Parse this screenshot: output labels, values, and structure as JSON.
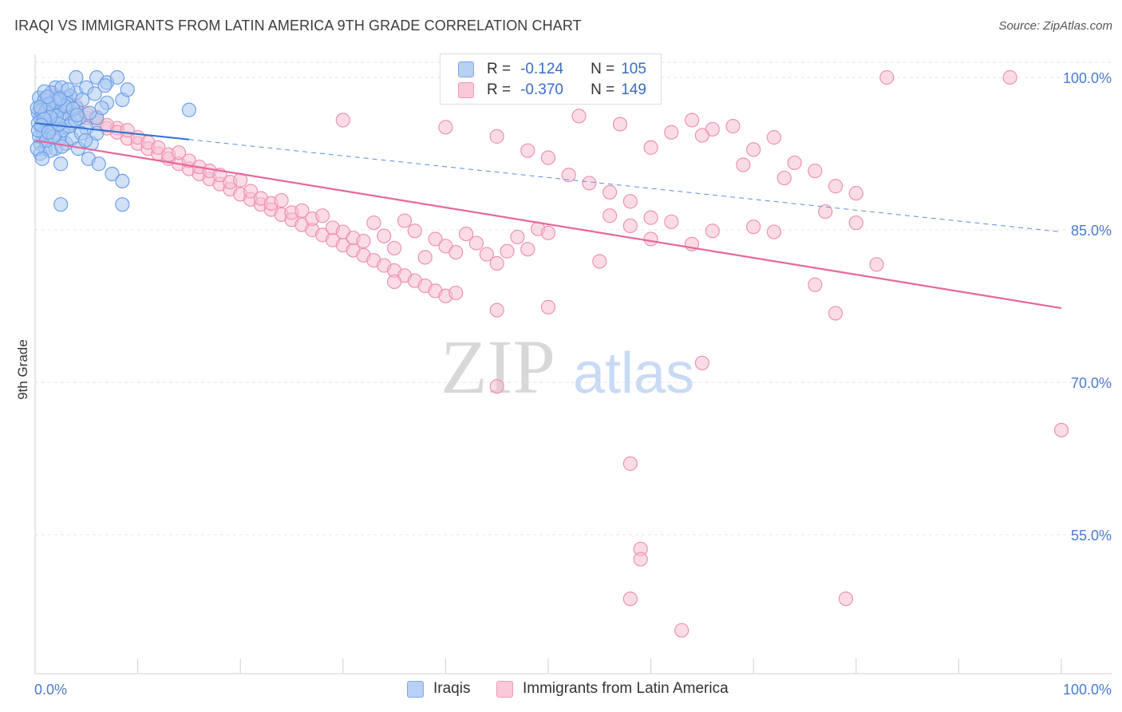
{
  "title": "IRAQI VS IMMIGRANTS FROM LATIN AMERICA 9TH GRADE CORRELATION CHART",
  "source": "Source: ZipAtlas.com",
  "watermark": {
    "zip": "ZIP",
    "atlas": "atlas"
  },
  "legend_top": {
    "rows": [
      {
        "r_key": "R =",
        "r_val": "-0.124",
        "n_key": "N =",
        "n_val": "105",
        "color": "#8fb7ef"
      },
      {
        "r_key": "R =",
        "r_val": "-0.370",
        "n_key": "N =",
        "n_val": "149",
        "color": "#f5a8c2"
      }
    ]
  },
  "legend_bottom": {
    "items": [
      {
        "label": "Iraqis",
        "color": "#8fb7ef"
      },
      {
        "label": "Immigrants from Latin America",
        "color": "#f5a8c2"
      }
    ]
  },
  "colors": {
    "blue_fill": "#a9c8f2",
    "blue_stroke": "#6fa0e6",
    "blue_line": "#2f6fd6",
    "pink_fill": "#f8bfd2",
    "pink_stroke": "#ee92b3",
    "pink_line": "#e8679a",
    "tick_label": "#4b7bc9",
    "grid": "#e4e4e4"
  },
  "chart_data": {
    "type": "scatter",
    "ylabel": "9th Grade",
    "x_tick_labels": [
      "0.0%",
      "100.0%"
    ],
    "y_tick_labels": [
      "100.0%",
      "85.0%",
      "70.0%",
      "55.0%"
    ],
    "y_ticks": [
      100,
      85,
      70,
      55
    ],
    "xlim": [
      0,
      100
    ],
    "ylim": [
      40,
      101
    ],
    "series": [
      {
        "name": "Iraqis",
        "r": -0.124,
        "n": 105,
        "trend": {
          "x0": 0,
          "y0": 95.5,
          "x1": 100,
          "y1": 84.8,
          "solid_until": 15
        },
        "points": [
          [
            2,
            99
          ],
          [
            4,
            100
          ],
          [
            6,
            100
          ],
          [
            7,
            99.5
          ],
          [
            8,
            100
          ],
          [
            4,
            98.5
          ],
          [
            5,
            99
          ],
          [
            3,
            98
          ],
          [
            1,
            97
          ],
          [
            2,
            96.5
          ],
          [
            3,
            97
          ],
          [
            0.5,
            96
          ],
          [
            1,
            95.5
          ],
          [
            1.5,
            96
          ],
          [
            2.5,
            95
          ],
          [
            3,
            96.5
          ],
          [
            4,
            97
          ],
          [
            1,
            94
          ],
          [
            2,
            94.5
          ],
          [
            0.5,
            93.5
          ],
          [
            1,
            93
          ],
          [
            2,
            93
          ],
          [
            3,
            93.5
          ],
          [
            0.3,
            96.5
          ],
          [
            0.8,
            97.5
          ],
          [
            1.2,
            96
          ],
          [
            1.8,
            97
          ],
          [
            2.2,
            98
          ],
          [
            2.8,
            96
          ],
          [
            3.5,
            95.5
          ],
          [
            5,
            95
          ],
          [
            6,
            96
          ],
          [
            7,
            97.5
          ],
          [
            0.6,
            95
          ],
          [
            1.4,
            94.8
          ],
          [
            2.4,
            94
          ],
          [
            3.6,
            94
          ],
          [
            4.2,
            93
          ],
          [
            5.2,
            92
          ],
          [
            6.2,
            91.5
          ],
          [
            4.5,
            94.5
          ],
          [
            5.5,
            93.5
          ],
          [
            0.4,
            98
          ],
          [
            1.6,
            98.5
          ],
          [
            2.6,
            99
          ],
          [
            3.4,
            98.2
          ],
          [
            0.2,
            97
          ],
          [
            0.7,
            96.2
          ],
          [
            1.1,
            95.2
          ],
          [
            1.9,
            95.8
          ],
          [
            2.3,
            96.8
          ],
          [
            3.1,
            97.4
          ],
          [
            0.9,
            97.8
          ],
          [
            1.3,
            97.2
          ],
          [
            0.3,
            95.5
          ],
          [
            0.8,
            94.5
          ],
          [
            1.7,
            95
          ],
          [
            2.7,
            94.8
          ],
          [
            3.3,
            95.2
          ],
          [
            4.3,
            96
          ],
          [
            5.3,
            96.5
          ],
          [
            6.5,
            97
          ],
          [
            8.5,
            97.8
          ],
          [
            0.5,
            92.5
          ],
          [
            1.5,
            92.8
          ],
          [
            2.5,
            91.5
          ],
          [
            7.5,
            90.5
          ],
          [
            8.5,
            89.8
          ],
          [
            2.5,
            87.5
          ],
          [
            8.5,
            87.5
          ],
          [
            15,
            96.8
          ],
          [
            9,
            98.8
          ],
          [
            0.6,
            96.8
          ],
          [
            1.2,
            96.4
          ],
          [
            1.6,
            96.6
          ],
          [
            2.1,
            96.2
          ],
          [
            2.9,
            97.2
          ],
          [
            0.4,
            94.2
          ],
          [
            1.1,
            93.8
          ],
          [
            3.9,
            95.8
          ],
          [
            6,
            94.5
          ],
          [
            0.9,
            98.6
          ],
          [
            2,
            97.6
          ],
          [
            4.6,
            97.8
          ],
          [
            5.8,
            98.4
          ],
          [
            3.2,
            98.8
          ],
          [
            0.2,
            93
          ],
          [
            0.7,
            92
          ],
          [
            1,
            96.6
          ],
          [
            1.4,
            97.4
          ],
          [
            2.3,
            95.4
          ],
          [
            0.5,
            97.1
          ],
          [
            1.8,
            94.2
          ],
          [
            2.6,
            93.2
          ],
          [
            4.9,
            93.8
          ],
          [
            6.8,
            99.2
          ],
          [
            0.3,
            94.8
          ],
          [
            1.5,
            96.1
          ],
          [
            0.9,
            95.9
          ],
          [
            3.7,
            96.9
          ],
          [
            1.2,
            98.1
          ],
          [
            2.4,
            97.9
          ],
          [
            0.6,
            95.3
          ],
          [
            1.3,
            94.6
          ],
          [
            4.1,
            96.3
          ]
        ]
      },
      {
        "name": "Immigrants from Latin America",
        "r": -0.37,
        "n": 149,
        "trend": {
          "x0": 0,
          "y0": 93.8,
          "x1": 100,
          "y1": 77.3
        },
        "points": [
          [
            1,
            98
          ],
          [
            2,
            97.5
          ],
          [
            3,
            97
          ],
          [
            4,
            96.5
          ],
          [
            5,
            96
          ],
          [
            6,
            95.5
          ],
          [
            7,
            95
          ],
          [
            8,
            95
          ],
          [
            9,
            94
          ],
          [
            10,
            93.5
          ],
          [
            11,
            93
          ],
          [
            12,
            92.5
          ],
          [
            13,
            92
          ],
          [
            14,
            91.5
          ],
          [
            15,
            91
          ],
          [
            16,
            90.5
          ],
          [
            17,
            90
          ],
          [
            18,
            89.5
          ],
          [
            19,
            89
          ],
          [
            20,
            88.5
          ],
          [
            21,
            88
          ],
          [
            22,
            87.5
          ],
          [
            23,
            87
          ],
          [
            24,
            86.5
          ],
          [
            25,
            86
          ],
          [
            26,
            85.5
          ],
          [
            27,
            85
          ],
          [
            28,
            84.5
          ],
          [
            29,
            84
          ],
          [
            30,
            83.5
          ],
          [
            31,
            83
          ],
          [
            32,
            82.5
          ],
          [
            33,
            82
          ],
          [
            34,
            81.5
          ],
          [
            35,
            81
          ],
          [
            36,
            80.5
          ],
          [
            37,
            80
          ],
          [
            38,
            79.5
          ],
          [
            39,
            79
          ],
          [
            40,
            78.5
          ],
          [
            2,
            98.2
          ],
          [
            3,
            96.8
          ],
          [
            4,
            97.2
          ],
          [
            5,
            96.4
          ],
          [
            6,
            96.1
          ],
          [
            7,
            95.3
          ],
          [
            8,
            94.6
          ],
          [
            9,
            94.8
          ],
          [
            10,
            94.1
          ],
          [
            11,
            93.6
          ],
          [
            12,
            93.1
          ],
          [
            13,
            92.4
          ],
          [
            14,
            92.6
          ],
          [
            15,
            91.8
          ],
          [
            16,
            91.2
          ],
          [
            17,
            90.8
          ],
          [
            18,
            90.4
          ],
          [
            19,
            89.7
          ],
          [
            20,
            89.9
          ],
          [
            21,
            88.8
          ],
          [
            22,
            88.1
          ],
          [
            23,
            87.6
          ],
          [
            24,
            87.9
          ],
          [
            25,
            86.7
          ],
          [
            26,
            86.9
          ],
          [
            27,
            86.1
          ],
          [
            28,
            86.4
          ],
          [
            29,
            85.2
          ],
          [
            30,
            84.8
          ],
          [
            31,
            84.2
          ],
          [
            32,
            83.9
          ],
          [
            33,
            85.7
          ],
          [
            34,
            84.4
          ],
          [
            35,
            83.2
          ],
          [
            36,
            85.9
          ],
          [
            37,
            84.9
          ],
          [
            38,
            82.3
          ],
          [
            39,
            84.1
          ],
          [
            40,
            83.4
          ],
          [
            41,
            82.8
          ],
          [
            42,
            84.6
          ],
          [
            43,
            83.7
          ],
          [
            44,
            82.6
          ],
          [
            45,
            81.7
          ],
          [
            46,
            82.9
          ],
          [
            47,
            84.3
          ],
          [
            48,
            83.1
          ],
          [
            49,
            85.1
          ],
          [
            50,
            84.7
          ],
          [
            55,
            81.9
          ],
          [
            58,
            85.4
          ],
          [
            60,
            84.1
          ],
          [
            62,
            85.8
          ],
          [
            64,
            83.6
          ],
          [
            66,
            84.9
          ],
          [
            70,
            85.3
          ],
          [
            72,
            84.8
          ],
          [
            30,
            95.8
          ],
          [
            40,
            95.1
          ],
          [
            45,
            94.2
          ],
          [
            48,
            92.8
          ],
          [
            50,
            92.1
          ],
          [
            52,
            90.4
          ],
          [
            54,
            89.6
          ],
          [
            56,
            88.7
          ],
          [
            58,
            87.8
          ],
          [
            60,
            86.2
          ],
          [
            62,
            94.6
          ],
          [
            64,
            95.8
          ],
          [
            66,
            94.9
          ],
          [
            68,
            95.2
          ],
          [
            70,
            92.9
          ],
          [
            72,
            94.1
          ],
          [
            74,
            91.6
          ],
          [
            76,
            90.8
          ],
          [
            78,
            89.3
          ],
          [
            80,
            88.6
          ],
          [
            83,
            100
          ],
          [
            95,
            100
          ],
          [
            53,
            96.2
          ],
          [
            57,
            95.4
          ],
          [
            60,
            93.1
          ],
          [
            65,
            94.3
          ],
          [
            69,
            91.4
          ],
          [
            73,
            90.1
          ],
          [
            77,
            86.8
          ],
          [
            80,
            85.7
          ],
          [
            82,
            81.6
          ],
          [
            76,
            79.6
          ],
          [
            78,
            76.8
          ],
          [
            45,
            77.1
          ],
          [
            50,
            77.4
          ],
          [
            65,
            71.9
          ],
          [
            45,
            69.6
          ],
          [
            100,
            65.3
          ],
          [
            58,
            62
          ],
          [
            59,
            53.6
          ],
          [
            59,
            52.6
          ],
          [
            58,
            48.7
          ],
          [
            63,
            45.6
          ],
          [
            79,
            48.7
          ],
          [
            56,
            86.4
          ],
          [
            35,
            79.9
          ],
          [
            41,
            78.8
          ]
        ]
      }
    ]
  }
}
